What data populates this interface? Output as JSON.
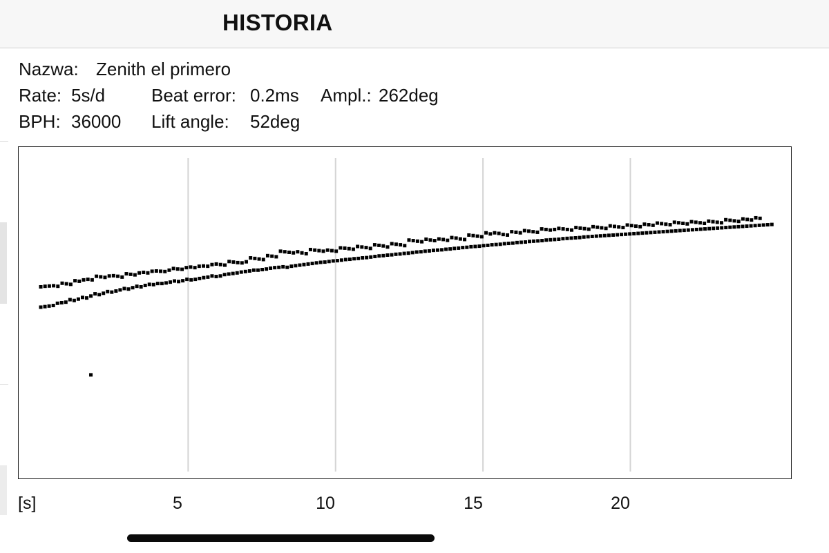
{
  "nav": {
    "title": "HISTORIA"
  },
  "info": {
    "name_label": "Nazwa:",
    "name_value": "Zenith el primero",
    "rate_label": "Rate:",
    "rate_value": "5s/d",
    "beat_error_label": "Beat error:",
    "beat_error_value": "0.2ms",
    "amplitude_label": "Ampl.:",
    "amplitude_value": "262deg",
    "bph_label": "BPH:",
    "bph_value": "36000",
    "lift_angle_label": "Lift angle:",
    "lift_angle_value": "52deg"
  },
  "chart_data": {
    "type": "scatter",
    "title": "",
    "xlabel": "[s]",
    "ylabel": "",
    "x_ticks": [
      "5",
      "10",
      "15",
      "20"
    ],
    "xlim": [
      -0.75,
      25.45
    ],
    "ylim": [
      -1.12,
      0.07
    ],
    "grid": "vertical",
    "legend": "none",
    "marker_color": "#000000",
    "grid_color": "#d4d4d4",
    "series": [
      {
        "values_start_x": 0,
        "values_step_x": 0.15,
        "values": [
          -0.432,
          -0.43,
          -0.429,
          -0.428,
          -0.43,
          -0.419,
          -0.421,
          -0.423,
          -0.41,
          -0.412,
          -0.407,
          -0.405,
          -0.407,
          -0.394,
          -0.396,
          -0.398,
          -0.393,
          -0.392,
          -0.394,
          -0.397,
          -0.385,
          -0.387,
          -0.389,
          -0.382,
          -0.38,
          -0.382,
          -0.376,
          -0.375,
          -0.376,
          -0.377,
          -0.372,
          -0.366,
          -0.368,
          -0.369,
          -0.363,
          -0.361,
          -0.363,
          -0.358,
          -0.357,
          -0.358,
          -0.352,
          -0.35,
          -0.352,
          -0.354,
          -0.341,
          -0.343,
          -0.345,
          -0.346,
          -0.342,
          -0.328,
          -0.33,
          -0.332,
          -0.334,
          -0.32,
          -0.322,
          -0.324,
          -0.304,
          -0.306,
          -0.308,
          -0.31,
          -0.306,
          -0.31,
          -0.313,
          -0.298,
          -0.3,
          -0.302,
          -0.304,
          -0.3,
          -0.302,
          -0.304,
          -0.292,
          -0.293,
          -0.295,
          -0.297,
          -0.287,
          -0.289,
          -0.291,
          -0.294,
          -0.281,
          -0.283,
          -0.285,
          -0.289,
          -0.277,
          -0.279,
          -0.281,
          -0.284,
          -0.264,
          -0.266,
          -0.268,
          -0.27,
          -0.261,
          -0.264,
          -0.266,
          -0.26,
          -0.262,
          -0.265,
          -0.255,
          -0.257,
          -0.26,
          -0.262,
          -0.246,
          -0.248,
          -0.25,
          -0.252,
          -0.238,
          -0.242,
          -0.238,
          -0.24,
          -0.244,
          -0.246,
          -0.234,
          -0.236,
          -0.238,
          -0.23,
          -0.232,
          -0.234,
          -0.236,
          -0.224,
          -0.226,
          -0.228,
          -0.226,
          -0.222,
          -0.224,
          -0.226,
          -0.228,
          -0.219,
          -0.221,
          -0.223,
          -0.225,
          -0.216,
          -0.218,
          -0.22,
          -0.222,
          -0.213,
          -0.215,
          -0.217,
          -0.219,
          -0.21,
          -0.212,
          -0.214,
          -0.216,
          -0.207,
          -0.209,
          -0.211,
          -0.203,
          -0.205,
          -0.207,
          -0.209,
          -0.2,
          -0.202,
          -0.204,
          -0.206,
          -0.198,
          -0.2,
          -0.202,
          -0.204,
          -0.196,
          -0.198,
          -0.2,
          -0.202,
          -0.191,
          -0.193,
          -0.195,
          -0.197,
          -0.188,
          -0.19,
          -0.192,
          -0.184,
          -0.186
        ],
        "x_end": 24.4
      },
      {
        "values_start_x": 0,
        "values": [
          -0.505,
          -0.503,
          -0.501,
          -0.499,
          -0.491,
          -0.489,
          -0.487,
          -0.478,
          -0.481,
          -0.476,
          -0.47,
          -0.472,
          -0.465,
          -0.457,
          -0.46,
          -0.455,
          -0.449,
          -0.451,
          -0.447,
          -0.443,
          -0.438,
          -0.44,
          -0.435,
          -0.43,
          -0.432,
          -0.427,
          -0.423,
          -0.424,
          -0.42,
          -0.42,
          -0.418,
          -0.415,
          -0.411,
          -0.413,
          -0.41,
          -0.405,
          -0.407,
          -0.405,
          -0.402,
          -0.399,
          -0.397,
          -0.393,
          -0.395,
          -0.393,
          -0.388,
          -0.386,
          -0.384,
          -0.382,
          -0.379,
          -0.377,
          -0.375,
          -0.372,
          -0.372,
          -0.37,
          -0.368,
          -0.365,
          -0.363,
          -0.362,
          -0.36,
          -0.362,
          -0.358,
          -0.356,
          -0.354,
          -0.352,
          -0.35,
          -0.348,
          -0.346,
          -0.344,
          -0.343,
          -0.341,
          -0.339,
          -0.338,
          -0.336,
          -0.334,
          -0.333,
          -0.331,
          -0.33,
          -0.328,
          -0.327,
          -0.325,
          -0.323,
          -0.321,
          -0.32,
          -0.318,
          -0.317,
          -0.315,
          -0.314,
          -0.312,
          -0.311,
          -0.309,
          -0.307,
          -0.306,
          -0.304,
          -0.303,
          -0.301,
          -0.3,
          -0.299,
          -0.297,
          -0.296,
          -0.294,
          -0.293,
          -0.291,
          -0.29,
          -0.288,
          -0.287,
          -0.286,
          -0.284,
          -0.283,
          -0.281,
          -0.28,
          -0.279,
          -0.277,
          -0.276,
          -0.275,
          -0.273,
          -0.272,
          -0.271,
          -0.269,
          -0.268,
          -0.267,
          -0.266,
          -0.264,
          -0.263,
          -0.262,
          -0.261,
          -0.259,
          -0.258,
          -0.257,
          -0.256,
          -0.255,
          -0.253,
          -0.252,
          -0.251,
          -0.25,
          -0.249,
          -0.248,
          -0.247,
          -0.246,
          -0.245,
          -0.244,
          -0.243,
          -0.242,
          -0.241,
          -0.24,
          -0.239,
          -0.238,
          -0.237,
          -0.236,
          -0.235,
          -0.234,
          -0.233,
          -0.232,
          -0.231,
          -0.23,
          -0.229,
          -0.228,
          -0.227,
          -0.226,
          -0.225,
          -0.224,
          -0.223,
          -0.222,
          -0.221,
          -0.22,
          -0.219,
          -0.218,
          -0.217,
          -0.216,
          -0.215,
          -0.214,
          -0.213,
          -0.212,
          -0.211,
          -0.21,
          -0.209,
          -0.208
        ],
        "x_end": 24.8
      },
      {
        "x": [
          1.7
        ],
        "y": [
          -0.748
        ]
      }
    ]
  }
}
